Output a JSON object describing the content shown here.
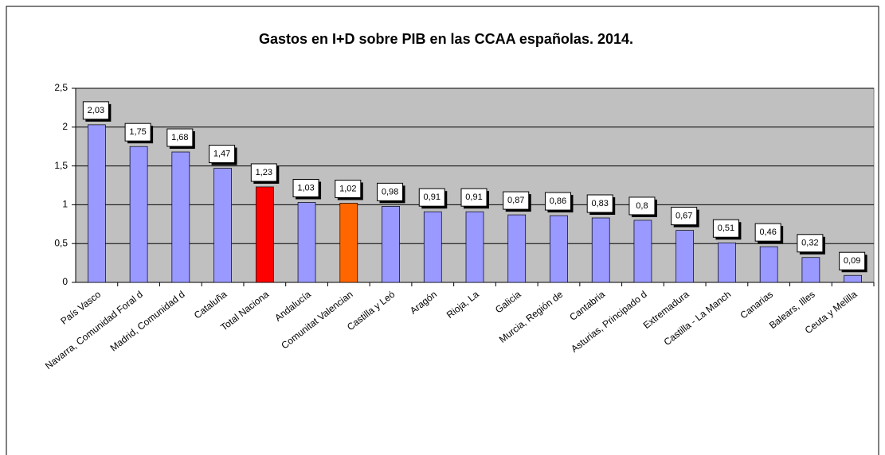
{
  "chart_data": {
    "type": "bar",
    "title": "Gastos en I+D sobre PIB en las CCAA españolas. 2014.",
    "categories": [
      "País Vasco",
      "Navarra, Comunidad Foral d",
      "Madrid, Comunidad d",
      "Cataluña",
      "Total Naciona",
      "Andalucía",
      "Comunitat Valencian",
      "Castilla y Leó",
      "Aragón",
      "Rioja, La",
      "Galicia",
      "Murcia, Región de",
      "Cantabria",
      "Asturias, Principado d",
      "Extremadura",
      "Castilla - La Manch",
      "Canarias",
      "Balears, Illes",
      "Ceuta y Melilla"
    ],
    "values": [
      2.03,
      1.75,
      1.68,
      1.47,
      1.23,
      1.03,
      1.02,
      0.98,
      0.91,
      0.91,
      0.87,
      0.86,
      0.83,
      0.8,
      0.67,
      0.51,
      0.46,
      0.32,
      0.09
    ],
    "value_labels": [
      "2,03",
      "1,75",
      "1,68",
      "1,47",
      "1,23",
      "1,03",
      "1,02",
      "0,98",
      "0,91",
      "0,91",
      "0,87",
      "0,86",
      "0,83",
      "0,8",
      "0,67",
      "0,51",
      "0,46",
      "0,32",
      "0,09"
    ],
    "colors": [
      "#9999ff",
      "#9999ff",
      "#9999ff",
      "#9999ff",
      "#ff0000",
      "#9999ff",
      "#ff6600",
      "#9999ff",
      "#9999ff",
      "#9999ff",
      "#9999ff",
      "#9999ff",
      "#9999ff",
      "#9999ff",
      "#9999ff",
      "#9999ff",
      "#9999ff",
      "#9999ff",
      "#9999ff"
    ],
    "ylim": [
      0,
      2.5
    ],
    "yticks": [
      0,
      {
        "value": 0.5,
        "label": "0,5"
      },
      1,
      {
        "value": 1.5,
        "label": "1,5"
      },
      2,
      {
        "value": 2.5,
        "label": "2,5"
      }
    ],
    "grid": true
  }
}
